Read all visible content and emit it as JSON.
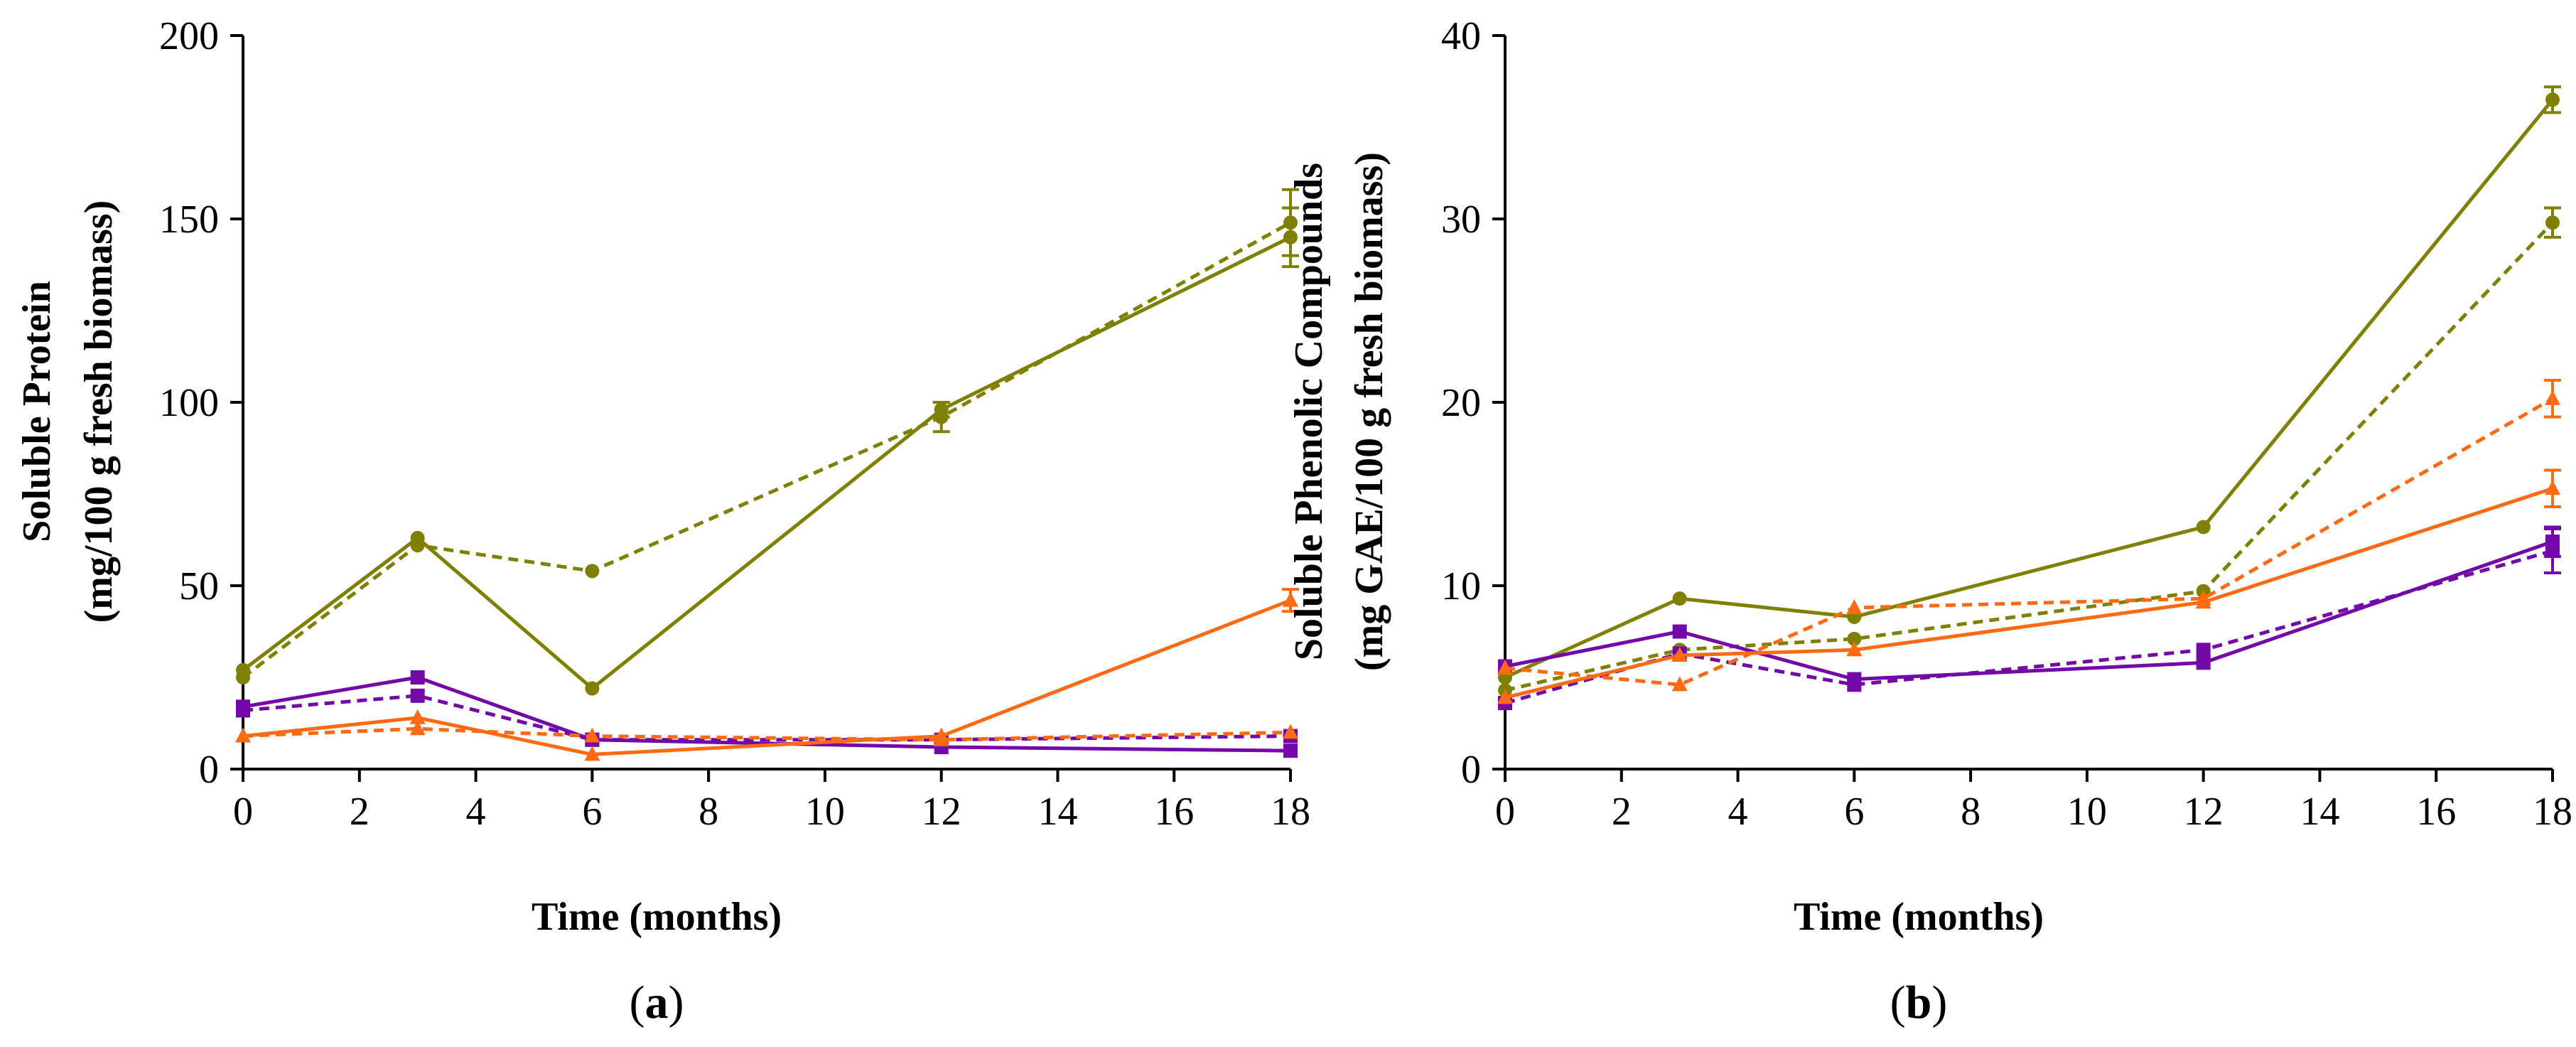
{
  "chart_data": [
    {
      "type": "line",
      "panel_label": "a",
      "xlabel": "Time (months)",
      "ylabel_line1": "Soluble Protein",
      "ylabel_line2": "(mg/100 g fresh biomass)",
      "xlim": [
        0,
        18
      ],
      "ylim": [
        0,
        200
      ],
      "xticks": [
        0,
        2,
        4,
        6,
        8,
        10,
        12,
        14,
        16,
        18
      ],
      "yticks": [
        0,
        50,
        100,
        150,
        200
      ],
      "x": [
        0,
        3,
        6,
        12,
        18
      ],
      "series": [
        {
          "name": "olive-solid",
          "color": "#7f7f00",
          "dashed": false,
          "marker": "circle",
          "values": [
            27,
            63,
            22,
            98,
            145
          ],
          "errors": [
            0,
            0,
            0,
            2,
            8
          ]
        },
        {
          "name": "olive-dashed",
          "color": "#7f7f00",
          "dashed": true,
          "marker": "circle",
          "values": [
            25,
            61,
            54,
            96,
            149
          ],
          "errors": [
            0,
            0,
            0,
            4,
            9
          ]
        },
        {
          "name": "purple-solid",
          "color": "#7209a8",
          "dashed": false,
          "marker": "square",
          "values": [
            17,
            25,
            8,
            6,
            5
          ],
          "errors": [
            0,
            0,
            0,
            0,
            0
          ]
        },
        {
          "name": "purple-dashed",
          "color": "#7209a8",
          "dashed": true,
          "marker": "square",
          "values": [
            16,
            20,
            8,
            8,
            9
          ],
          "errors": [
            0,
            0,
            0,
            0,
            0
          ]
        },
        {
          "name": "orange-solid",
          "color": "#ff6a13",
          "dashed": false,
          "marker": "triangle",
          "values": [
            9,
            14,
            4,
            9,
            46
          ],
          "errors": [
            0,
            0,
            0,
            0,
            3
          ]
        },
        {
          "name": "orange-dashed",
          "color": "#ff6a13",
          "dashed": true,
          "marker": "triangle",
          "values": [
            9,
            11,
            9,
            8,
            10
          ],
          "errors": [
            0,
            0,
            0,
            0,
            0
          ]
        }
      ]
    },
    {
      "type": "line",
      "panel_label": "b",
      "xlabel": "Time (months)",
      "ylabel_line1": "Soluble Phenolic Compounds",
      "ylabel_line2": "(mg GAE/100 g fresh biomass)",
      "xlim": [
        0,
        18
      ],
      "ylim": [
        0,
        40
      ],
      "xticks": [
        0,
        2,
        4,
        6,
        8,
        10,
        12,
        14,
        16,
        18
      ],
      "yticks": [
        0,
        10,
        20,
        30,
        40
      ],
      "x": [
        0,
        3,
        6,
        12,
        18
      ],
      "series": [
        {
          "name": "olive-solid",
          "color": "#7f7f00",
          "dashed": false,
          "marker": "circle",
          "values": [
            5.0,
            9.3,
            8.3,
            13.2,
            36.5
          ],
          "errors": [
            0,
            0,
            0,
            0,
            0.7
          ]
        },
        {
          "name": "olive-dashed",
          "color": "#7f7f00",
          "dashed": true,
          "marker": "circle",
          "values": [
            4.3,
            6.5,
            7.1,
            9.7,
            29.8
          ],
          "errors": [
            0,
            0,
            0,
            0,
            0.8
          ]
        },
        {
          "name": "purple-solid",
          "color": "#7209a8",
          "dashed": false,
          "marker": "square",
          "values": [
            5.6,
            7.5,
            4.9,
            5.8,
            12.4
          ],
          "errors": [
            0,
            0,
            0,
            0,
            0.8
          ]
        },
        {
          "name": "purple-dashed",
          "color": "#7209a8",
          "dashed": true,
          "marker": "square",
          "values": [
            3.6,
            6.3,
            4.6,
            6.5,
            11.9
          ],
          "errors": [
            0,
            0,
            0,
            0,
            1.2
          ]
        },
        {
          "name": "orange-solid",
          "color": "#ff6a13",
          "dashed": false,
          "marker": "triangle",
          "values": [
            3.9,
            6.2,
            6.5,
            9.1,
            15.3
          ],
          "errors": [
            0,
            0,
            0,
            0,
            1.0
          ]
        },
        {
          "name": "orange-dashed",
          "color": "#ff6a13",
          "dashed": true,
          "marker": "triangle",
          "values": [
            5.5,
            4.6,
            8.8,
            9.3,
            20.2
          ],
          "errors": [
            0,
            0,
            0,
            0,
            1.0
          ]
        }
      ]
    }
  ]
}
